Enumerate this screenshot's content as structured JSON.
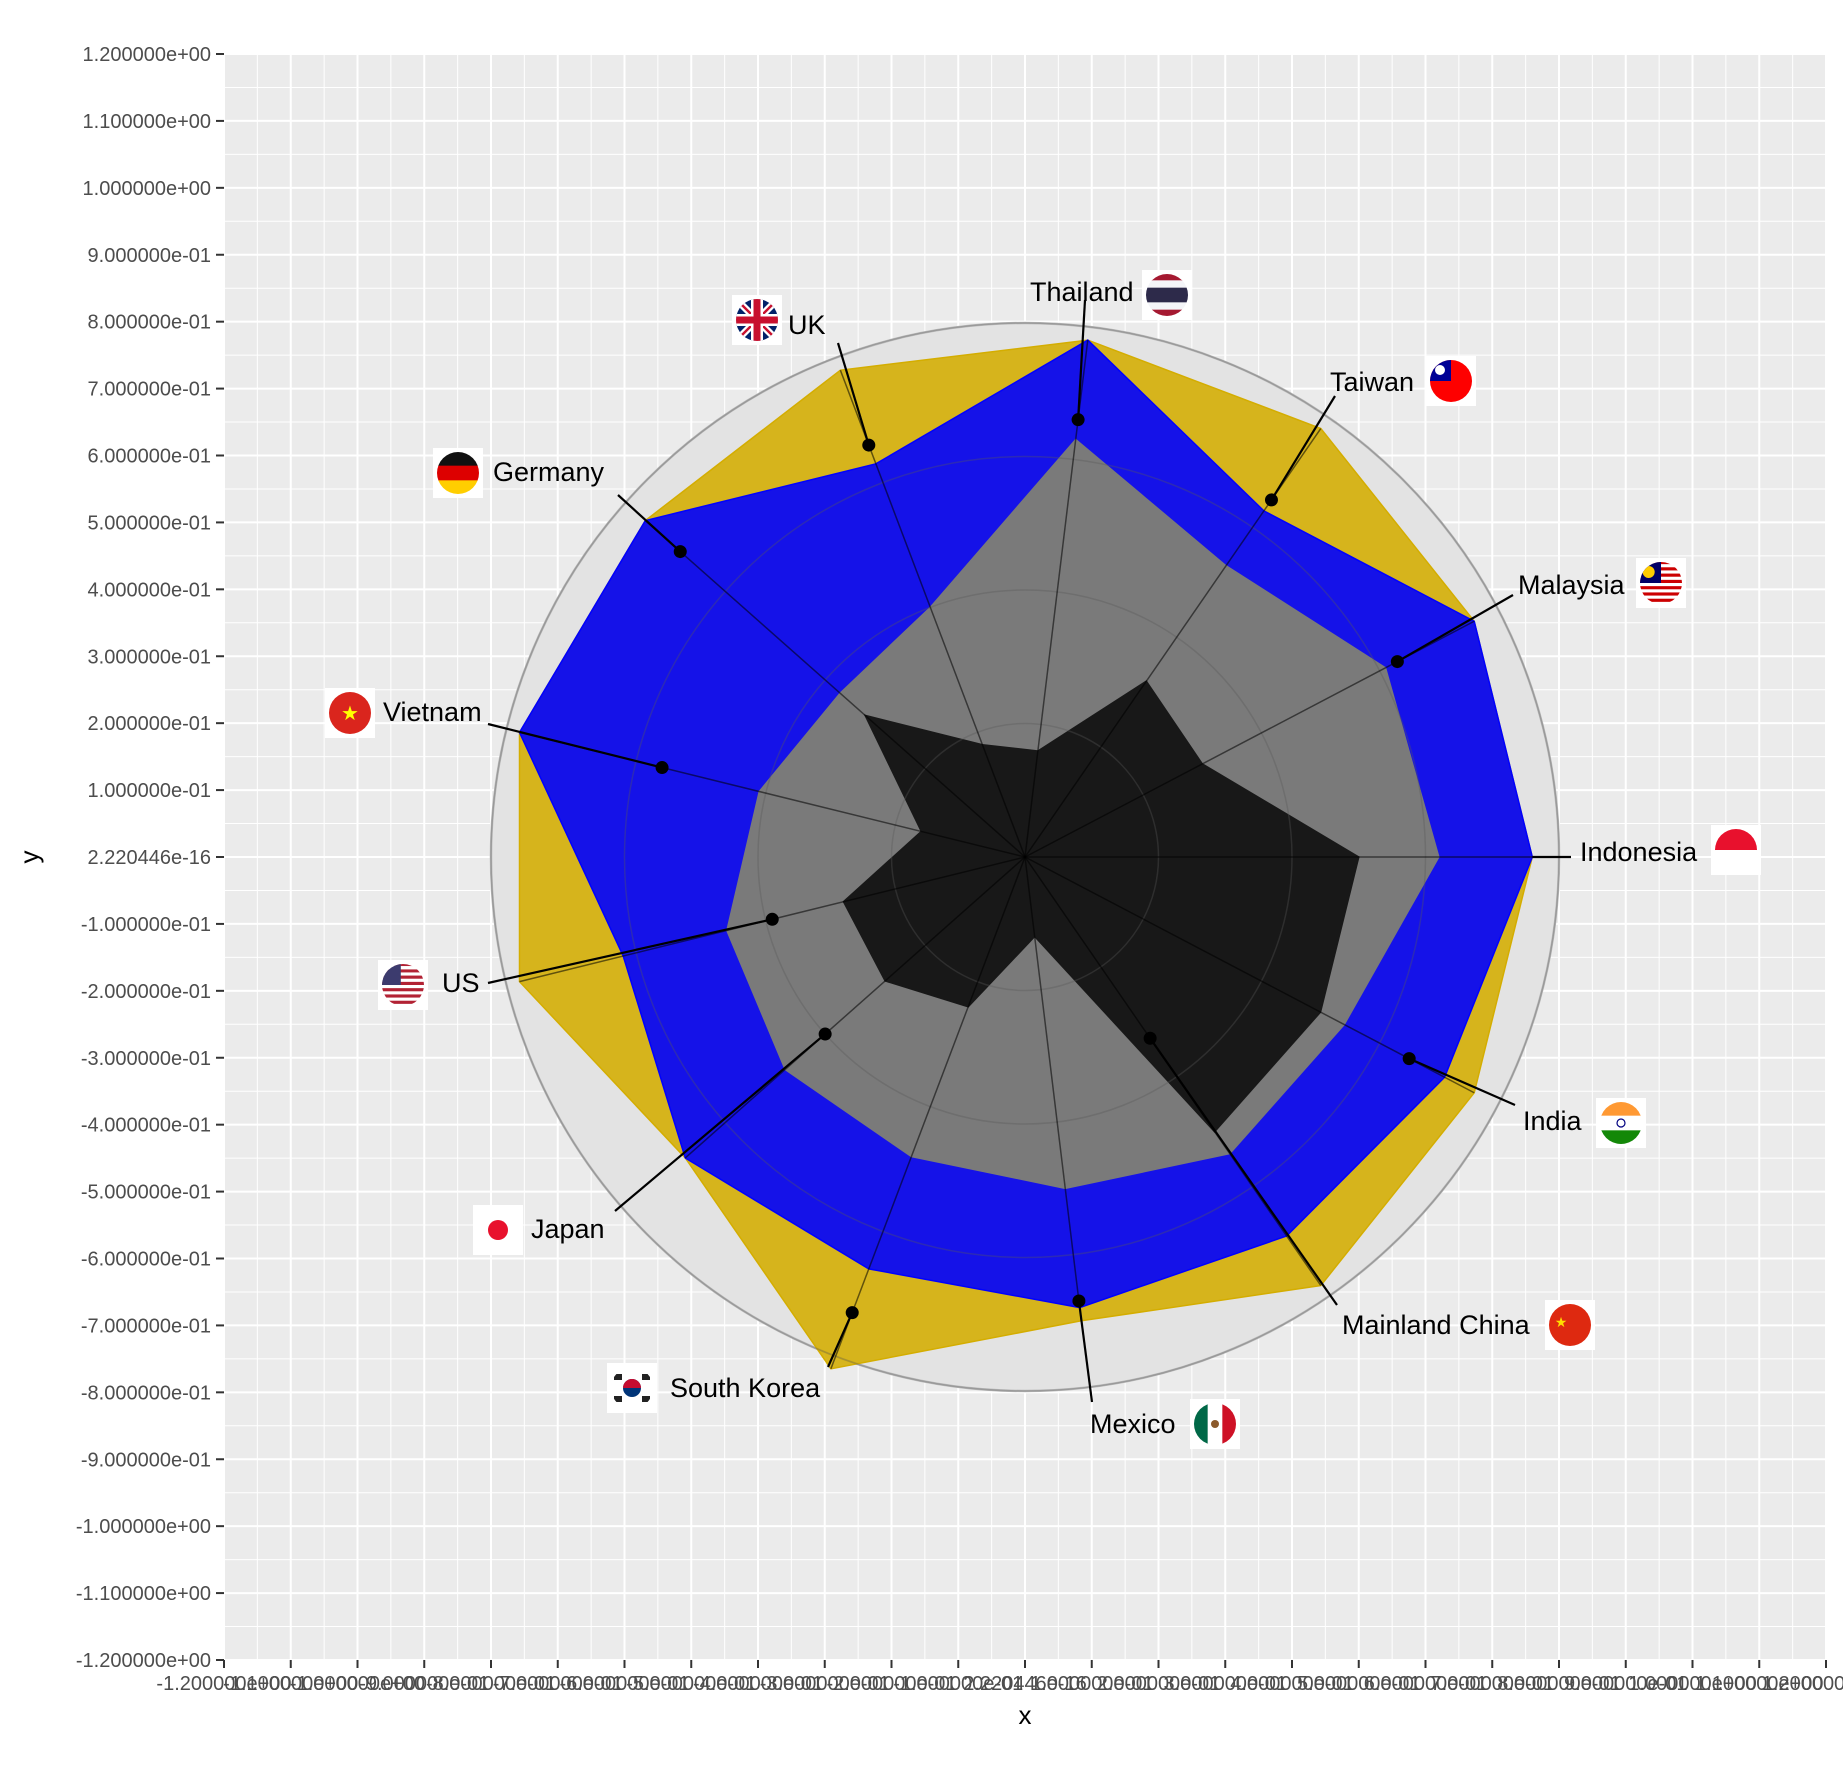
{
  "chart_data": {
    "type": "radar",
    "xlabel": "x",
    "ylabel": "y",
    "xlim": [
      -1.2,
      1.2
    ],
    "ylim": [
      -1.2,
      1.2
    ],
    "y_ticks": [
      {
        "value": 1.2,
        "label": "1.200000e+00"
      },
      {
        "value": 1.1,
        "label": "1.100000e+00"
      },
      {
        "value": 1.0,
        "label": "1.000000e+00"
      },
      {
        "value": 0.9,
        "label": "9.000000e-01"
      },
      {
        "value": 0.8,
        "label": "8.000000e-01"
      },
      {
        "value": 0.7,
        "label": "7.000000e-01"
      },
      {
        "value": 0.6,
        "label": "6.000000e-01"
      },
      {
        "value": 0.5,
        "label": "5.000000e-01"
      },
      {
        "value": 0.4,
        "label": "4.000000e-01"
      },
      {
        "value": 0.3,
        "label": "3.000000e-01"
      },
      {
        "value": 0.2,
        "label": "2.000000e-01"
      },
      {
        "value": 0.1,
        "label": "1.000000e-01"
      },
      {
        "value": 0.0,
        "label": "2.220446e-16"
      },
      {
        "value": -0.1,
        "label": "-1.000000e-01"
      },
      {
        "value": -0.2,
        "label": "-2.000000e-01"
      },
      {
        "value": -0.3,
        "label": "-3.000000e-01"
      },
      {
        "value": -0.4,
        "label": "-4.000000e-01"
      },
      {
        "value": -0.5,
        "label": "-5.000000e-01"
      },
      {
        "value": -0.6,
        "label": "-6.000000e-01"
      },
      {
        "value": -0.7,
        "label": "-7.000000e-01"
      },
      {
        "value": -0.8,
        "label": "-8.000000e-01"
      },
      {
        "value": -0.9,
        "label": "-9.000000e-01"
      },
      {
        "value": -1.0,
        "label": "-1.000000e+00"
      },
      {
        "value": -1.1,
        "label": "-1.100000e+00"
      },
      {
        "value": -1.2,
        "label": "-1.200000e+00"
      }
    ],
    "x_ticks": [
      {
        "value": -1.2,
        "label": "-1.200000e+00"
      },
      {
        "value": -1.1,
        "label": "-1.100000e+00"
      },
      {
        "value": -1.0,
        "label": "-1.000000e+00"
      },
      {
        "value": -0.9,
        "label": "-9.000000e-01"
      },
      {
        "value": -0.8,
        "label": "-8.000000e-01"
      },
      {
        "value": -0.7,
        "label": "-7.000000e-01"
      },
      {
        "value": -0.6,
        "label": "-6.000000e-01"
      },
      {
        "value": -0.5,
        "label": "-5.000000e-01"
      },
      {
        "value": -0.4,
        "label": "-4.000000e-01"
      },
      {
        "value": -0.3,
        "label": "-3.000000e-01"
      },
      {
        "value": -0.2,
        "label": "-2.000000e-01"
      },
      {
        "value": -0.1,
        "label": "-1.000000e-01"
      },
      {
        "value": 0.0,
        "label": "2.220446e-16"
      },
      {
        "value": 0.1,
        "label": "1.000000e-01"
      },
      {
        "value": 0.2,
        "label": "2.000000e-01"
      },
      {
        "value": 0.3,
        "label": "3.000000e-01"
      },
      {
        "value": 0.4,
        "label": "4.000000e-01"
      },
      {
        "value": 0.5,
        "label": "5.000000e-01"
      },
      {
        "value": 0.6,
        "label": "6.000000e-01"
      },
      {
        "value": 0.7,
        "label": "7.000000e-01"
      },
      {
        "value": 0.8,
        "label": "8.000000e-01"
      },
      {
        "value": 0.9,
        "label": "9.000000e-01"
      },
      {
        "value": 1.0,
        "label": "1.000000e+00"
      },
      {
        "value": 1.1,
        "label": "1.100000e+00"
      },
      {
        "value": 1.2,
        "label": "1.200000e+00"
      }
    ],
    "radial_max": 0.8,
    "radial_gridlines": [
      0.2,
      0.4,
      0.6,
      0.8
    ],
    "categories": [
      "Indonesia",
      "Malaysia",
      "Taiwan",
      "Thailand",
      "UK",
      "Germany",
      "Vietnam",
      "US",
      "Japan",
      "South Korea",
      "Mexico",
      "Mainland China",
      "India"
    ],
    "series": [
      {
        "fill": "#d4ad00",
        "opacity": 0.88,
        "values": [
          0.76,
          0.76,
          0.78,
          0.78,
          0.78,
          0.76,
          0.78,
          0.78,
          0.68,
          0.82,
          0.7,
          0.78,
          0.76
        ]
      },
      {
        "fill": "#0000ff",
        "opacity": 0.9,
        "values": [
          0.76,
          0.76,
          0.63,
          0.78,
          0.63,
          0.76,
          0.78,
          0.62,
          0.68,
          0.66,
          0.68,
          0.69,
          0.71
        ]
      },
      {
        "fill": "#7a7a7a",
        "opacity": 1.0,
        "values": [
          0.62,
          0.61,
          0.53,
          0.63,
          0.4,
          0.37,
          0.41,
          0.46,
          0.48,
          0.48,
          0.5,
          0.54,
          0.54
        ]
      },
      {
        "fill": "#181818",
        "opacity": 1.0,
        "values": [
          0.5,
          0.3,
          0.32,
          0.16,
          0.18,
          0.32,
          0.16,
          0.28,
          0.28,
          0.24,
          0.12,
          0.5,
          0.5
        ]
      }
    ],
    "highlight_points": [
      0.0,
      0.63,
      0.65,
      0.66,
      0.66,
      0.69,
      0.56,
      0.39,
      0.4,
      0.73,
      0.67,
      0.33,
      0.65
    ],
    "annotations": [
      {
        "label": "Indonesia",
        "flag": "indonesia-flag-icon"
      },
      {
        "label": "Malaysia",
        "flag": "malaysia-flag-icon"
      },
      {
        "label": "Taiwan",
        "flag": "taiwan-flag-icon"
      },
      {
        "label": "Thailand",
        "flag": "thailand-flag-icon"
      },
      {
        "label": "UK",
        "flag": "uk-flag-icon"
      },
      {
        "label": "Germany",
        "flag": "germany-flag-icon"
      },
      {
        "label": "Vietnam",
        "flag": "vietnam-flag-icon"
      },
      {
        "label": "US",
        "flag": "us-flag-icon"
      },
      {
        "label": "Japan",
        "flag": "japan-flag-icon"
      },
      {
        "label": "South Korea",
        "flag": "south-korea-flag-icon"
      },
      {
        "label": "Mexico",
        "flag": "mexico-flag-icon"
      },
      {
        "label": "Mainland China",
        "flag": "china-flag-icon"
      },
      {
        "label": "India",
        "flag": "india-flag-icon"
      }
    ],
    "grid": true,
    "legend": "none",
    "colors": {
      "panel_background": "#ebebeb",
      "gridline": "#ffffff",
      "radar_circle": "#e3e3e3",
      "radar_circle_edge": "#bdbdbd"
    }
  }
}
